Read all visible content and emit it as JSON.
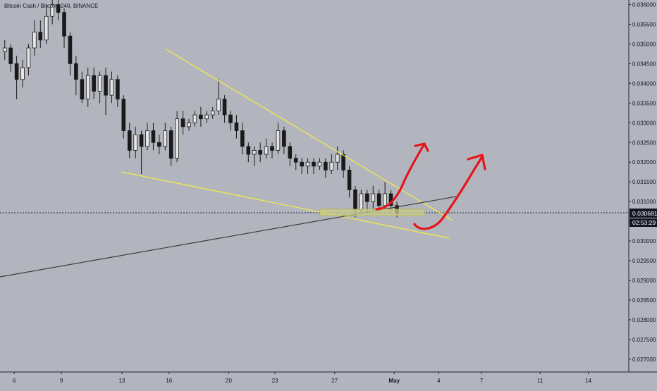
{
  "symbol_header": "Bitcoin Cash / Bitcoin, 240, BINANCE",
  "colors": {
    "background": "#b2b5be",
    "candle": "#1a1a1a",
    "wedge_line": "#f5e94a",
    "trend_line": "#3a3a3a",
    "zone_fill": "#c9cf8a",
    "zone_stroke": "#b8b85a",
    "arrow": "#e8141a",
    "price_tag_bg": "#131722",
    "price_tag_text": "#ffffff",
    "axis_text": "#131722"
  },
  "price_tag": {
    "price": "0.030681",
    "countdown": "02:53:29"
  },
  "chart_data": {
    "type": "candlestick",
    "x_ticks": [
      "6",
      "9",
      "13",
      "16",
      "20",
      "23",
      "27",
      "May",
      "4",
      "7",
      "11",
      "14"
    ],
    "y_ticks": [
      "0.036000",
      "0.035500",
      "0.035000",
      "0.034500",
      "0.034000",
      "0.033500",
      "0.033000",
      "0.032500",
      "0.032000",
      "0.031500",
      "0.031000",
      "0.030500",
      "0.030000",
      "0.029500",
      "0.029000",
      "0.028500",
      "0.028000",
      "0.027500",
      "0.027000"
    ],
    "ylim": [
      0.02673,
      0.03608
    ],
    "xlim": [
      0,
      26.4
    ],
    "last_price": 0.030681,
    "candles": [
      [
        0.2,
        0.0348,
        0.0349,
        0.0351,
        0.0346
      ],
      [
        0.45,
        0.0349,
        0.0345,
        0.035,
        0.0343
      ],
      [
        0.7,
        0.0345,
        0.0341,
        0.0347,
        0.0336
      ],
      [
        0.95,
        0.0341,
        0.0344,
        0.0346,
        0.0339
      ],
      [
        1.2,
        0.0344,
        0.0349,
        0.035,
        0.0342
      ],
      [
        1.45,
        0.0349,
        0.0353,
        0.0356,
        0.0347
      ],
      [
        1.7,
        0.0353,
        0.0351,
        0.0356,
        0.0349
      ],
      [
        1.95,
        0.0351,
        0.0357,
        0.036,
        0.035
      ],
      [
        2.2,
        0.0357,
        0.036,
        0.0363,
        0.0355
      ],
      [
        2.45,
        0.036,
        0.0358,
        0.0362,
        0.0356
      ],
      [
        2.7,
        0.0358,
        0.0352,
        0.0359,
        0.0349
      ],
      [
        2.95,
        0.0352,
        0.0345,
        0.0353,
        0.0342
      ],
      [
        3.2,
        0.0345,
        0.0341,
        0.0347,
        0.0337
      ],
      [
        3.45,
        0.0341,
        0.0336,
        0.0343,
        0.0335
      ],
      [
        3.7,
        0.0336,
        0.0342,
        0.0344,
        0.0334
      ],
      [
        3.95,
        0.0342,
        0.0338,
        0.0344,
        0.0336
      ],
      [
        4.2,
        0.0338,
        0.0342,
        0.0343,
        0.0335
      ],
      [
        4.45,
        0.0342,
        0.0337,
        0.0344,
        0.0332
      ],
      [
        4.7,
        0.0337,
        0.0341,
        0.0343,
        0.0335
      ],
      [
        4.95,
        0.0341,
        0.0336,
        0.0342,
        0.0334
      ],
      [
        5.2,
        0.0336,
        0.0328,
        0.0337,
        0.0326
      ],
      [
        5.45,
        0.0328,
        0.0323,
        0.033,
        0.0321
      ],
      [
        5.7,
        0.0323,
        0.0327,
        0.0329,
        0.0321
      ],
      [
        5.95,
        0.0327,
        0.0324,
        0.0328,
        0.0317
      ],
      [
        6.2,
        0.0324,
        0.0328,
        0.033,
        0.0323
      ],
      [
        6.45,
        0.0328,
        0.0325,
        0.033,
        0.0323
      ],
      [
        6.7,
        0.0325,
        0.0324,
        0.0327,
        0.0322
      ],
      [
        6.95,
        0.0324,
        0.0328,
        0.033,
        0.0323
      ],
      [
        7.2,
        0.0328,
        0.0321,
        0.0329,
        0.0319
      ],
      [
        7.45,
        0.0321,
        0.0331,
        0.0333,
        0.032
      ],
      [
        7.7,
        0.0331,
        0.0329,
        0.0333,
        0.0327
      ],
      [
        7.95,
        0.0329,
        0.033,
        0.0331,
        0.0328
      ],
      [
        8.2,
        0.033,
        0.0332,
        0.0333,
        0.0329
      ],
      [
        8.45,
        0.0332,
        0.0331,
        0.0334,
        0.0329
      ],
      [
        8.7,
        0.0331,
        0.0332,
        0.0333,
        0.033
      ],
      [
        8.95,
        0.0332,
        0.0333,
        0.0334,
        0.0331
      ],
      [
        9.2,
        0.0333,
        0.0336,
        0.0341,
        0.0332
      ],
      [
        9.45,
        0.0336,
        0.0332,
        0.0337,
        0.033
      ],
      [
        9.7,
        0.0332,
        0.033,
        0.0333,
        0.0328
      ],
      [
        9.95,
        0.033,
        0.0328,
        0.0332,
        0.0326
      ],
      [
        10.2,
        0.0328,
        0.0324,
        0.033,
        0.0322
      ],
      [
        10.45,
        0.0324,
        0.0322,
        0.0325,
        0.032
      ],
      [
        10.7,
        0.0322,
        0.0323,
        0.0324,
        0.0319
      ],
      [
        10.95,
        0.0323,
        0.0322,
        0.0325,
        0.032
      ],
      [
        11.2,
        0.0322,
        0.0324,
        0.0326,
        0.0321
      ],
      [
        11.45,
        0.0324,
        0.0323,
        0.0325,
        0.0321
      ],
      [
        11.7,
        0.0323,
        0.0328,
        0.033,
        0.0322
      ],
      [
        11.95,
        0.0328,
        0.0324,
        0.0329,
        0.0322
      ],
      [
        12.2,
        0.0324,
        0.0321,
        0.0325,
        0.0319
      ],
      [
        12.45,
        0.0321,
        0.032,
        0.0322,
        0.0318
      ],
      [
        12.7,
        0.032,
        0.0319,
        0.0321,
        0.0317
      ],
      [
        12.95,
        0.0319,
        0.032,
        0.0321,
        0.0317
      ],
      [
        13.2,
        0.032,
        0.0319,
        0.0321,
        0.0317
      ],
      [
        13.45,
        0.0319,
        0.032,
        0.0321,
        0.0318
      ],
      [
        13.7,
        0.032,
        0.0318,
        0.0321,
        0.0316
      ],
      [
        13.95,
        0.0318,
        0.032,
        0.0322,
        0.0317
      ],
      [
        14.2,
        0.032,
        0.0322,
        0.0324,
        0.0318
      ],
      [
        14.45,
        0.0322,
        0.0318,
        0.0323,
        0.0316
      ],
      [
        14.7,
        0.0318,
        0.0313,
        0.0319,
        0.0311
      ],
      [
        14.95,
        0.0313,
        0.0308,
        0.0314,
        0.0306
      ],
      [
        15.2,
        0.0308,
        0.0312,
        0.0313,
        0.0307
      ],
      [
        15.45,
        0.0312,
        0.031,
        0.0313,
        0.0307
      ],
      [
        15.7,
        0.031,
        0.0312,
        0.0314,
        0.0308
      ],
      [
        15.95,
        0.0312,
        0.0309,
        0.0313,
        0.0307
      ],
      [
        16.2,
        0.0309,
        0.0312,
        0.0315,
        0.0308
      ],
      [
        16.45,
        0.0312,
        0.0309,
        0.0313,
        0.0307
      ],
      [
        16.7,
        0.0309,
        0.0307,
        0.031,
        0.0306
      ]
    ]
  }
}
